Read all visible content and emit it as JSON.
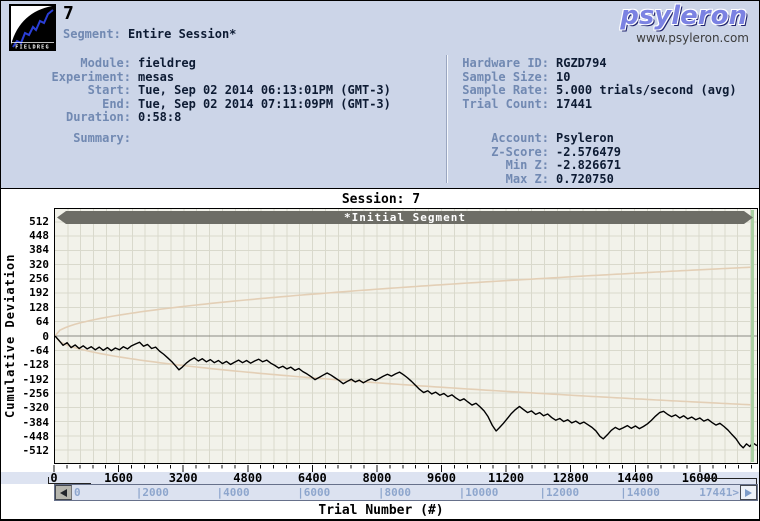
{
  "header": {
    "session_number": "7",
    "segment_label": "Segment:",
    "segment_value": "Entire Session*",
    "brand": "psyleron",
    "brand_url": "www.psyleron.com",
    "logo_text": "FIELDREG"
  },
  "info": {
    "left": [
      {
        "label": "Module:",
        "value": "fieldreg"
      },
      {
        "label": "Experiment:",
        "value": "mesas"
      },
      {
        "label": "Start:",
        "value": "Tue, Sep 02 2014 06:13:01PM (GMT-3)"
      },
      {
        "label": "End:",
        "value": "Tue, Sep 02 2014 07:11:09PM (GMT-3)"
      },
      {
        "label": "Duration:",
        "value": "0:58:8"
      },
      {
        "label": "Summary:",
        "value": ""
      }
    ],
    "right_top": [
      {
        "label": "Hardware ID:",
        "value": "RGZD794"
      },
      {
        "label": "Sample Size:",
        "value": "10"
      },
      {
        "label": "Sample Rate:",
        "value": "5.000 trials/second (avg)"
      },
      {
        "label": "Trial Count:",
        "value": "17441"
      }
    ],
    "right_bottom": [
      {
        "label": "Account:",
        "value": "Psyleron"
      },
      {
        "label": "Z-Score:",
        "value": "-2.576479"
      },
      {
        "label": "Min Z:",
        "value": "-2.826671"
      },
      {
        "label": "Max Z:",
        "value": "0.720750"
      }
    ]
  },
  "chart_data": {
    "type": "line",
    "title": "Session: 7",
    "segment_bar_label": "*Initial Segment",
    "xlabel": "Trial Number (#)",
    "ylabel": "Cumulative Deviation",
    "xlim": [
      0,
      17441
    ],
    "ylim": [
      -570,
      570
    ],
    "grid": true,
    "x_major_ticks": [
      0,
      1600,
      3200,
      4800,
      6400,
      8000,
      9600,
      11200,
      12800,
      14400,
      16000
    ],
    "x_minor_step": 320,
    "y_ticks": [
      512,
      448,
      384,
      320,
      256,
      192,
      128,
      64,
      0,
      -64,
      -128,
      -192,
      -256,
      -320,
      -384,
      -448,
      -512
    ],
    "envelope": {
      "shape": "sqrt",
      "end_value": 310,
      "note": "p=0.05 significance envelope, value = ±310·sqrt(t/17441)"
    },
    "series": [
      {
        "name": "Cumulative Deviation",
        "points": [
          [
            0,
            0
          ],
          [
            100,
            -20
          ],
          [
            200,
            -42
          ],
          [
            300,
            -30
          ],
          [
            400,
            -52
          ],
          [
            500,
            -40
          ],
          [
            600,
            -56
          ],
          [
            700,
            -44
          ],
          [
            800,
            -58
          ],
          [
            900,
            -48
          ],
          [
            1000,
            -62
          ],
          [
            1100,
            -50
          ],
          [
            1200,
            -64
          ],
          [
            1300,
            -52
          ],
          [
            1400,
            -66
          ],
          [
            1500,
            -54
          ],
          [
            1600,
            -62
          ],
          [
            1700,
            -48
          ],
          [
            1800,
            -58
          ],
          [
            1900,
            -44
          ],
          [
            2000,
            -36
          ],
          [
            2100,
            -28
          ],
          [
            2200,
            -46
          ],
          [
            2300,
            -38
          ],
          [
            2400,
            -56
          ],
          [
            2500,
            -50
          ],
          [
            2600,
            -68
          ],
          [
            2700,
            -82
          ],
          [
            2800,
            -98
          ],
          [
            2900,
            -115
          ],
          [
            3000,
            -135
          ],
          [
            3080,
            -152
          ],
          [
            3160,
            -140
          ],
          [
            3260,
            -122
          ],
          [
            3360,
            -108
          ],
          [
            3460,
            -98
          ],
          [
            3560,
            -112
          ],
          [
            3660,
            -102
          ],
          [
            3760,
            -116
          ],
          [
            3860,
            -106
          ],
          [
            3960,
            -120
          ],
          [
            4060,
            -110
          ],
          [
            4160,
            -124
          ],
          [
            4260,
            -114
          ],
          [
            4360,
            -128
          ],
          [
            4460,
            -118
          ],
          [
            4560,
            -108
          ],
          [
            4660,
            -120
          ],
          [
            4760,
            -110
          ],
          [
            4860,
            -122
          ],
          [
            4960,
            -112
          ],
          [
            5060,
            -104
          ],
          [
            5160,
            -116
          ],
          [
            5260,
            -108
          ],
          [
            5360,
            -122
          ],
          [
            5460,
            -132
          ],
          [
            5560,
            -144
          ],
          [
            5660,
            -136
          ],
          [
            5760,
            -148
          ],
          [
            5860,
            -140
          ],
          [
            5960,
            -154
          ],
          [
            6060,
            -146
          ],
          [
            6160,
            -160
          ],
          [
            6260,
            -170
          ],
          [
            6360,
            -182
          ],
          [
            6460,
            -196
          ],
          [
            6560,
            -186
          ],
          [
            6660,
            -176
          ],
          [
            6760,
            -166
          ],
          [
            6860,
            -176
          ],
          [
            6960,
            -188
          ],
          [
            7060,
            -200
          ],
          [
            7160,
            -214
          ],
          [
            7260,
            -204
          ],
          [
            7360,
            -194
          ],
          [
            7460,
            -206
          ],
          [
            7560,
            -198
          ],
          [
            7660,
            -210
          ],
          [
            7760,
            -200
          ],
          [
            7860,
            -192
          ],
          [
            7960,
            -200
          ],
          [
            8060,
            -190
          ],
          [
            8160,
            -180
          ],
          [
            8260,
            -172
          ],
          [
            8360,
            -180
          ],
          [
            8460,
            -170
          ],
          [
            8560,
            -162
          ],
          [
            8660,
            -174
          ],
          [
            8760,
            -188
          ],
          [
            8860,
            -204
          ],
          [
            8960,
            -222
          ],
          [
            9060,
            -240
          ],
          [
            9160,
            -254
          ],
          [
            9260,
            -246
          ],
          [
            9360,
            -260
          ],
          [
            9460,
            -252
          ],
          [
            9560,
            -266
          ],
          [
            9660,
            -258
          ],
          [
            9760,
            -272
          ],
          [
            9860,
            -264
          ],
          [
            9960,
            -278
          ],
          [
            10060,
            -290
          ],
          [
            10160,
            -282
          ],
          [
            10260,
            -296
          ],
          [
            10360,
            -310
          ],
          [
            10460,
            -302
          ],
          [
            10560,
            -318
          ],
          [
            10660,
            -336
          ],
          [
            10760,
            -362
          ],
          [
            10860,
            -400
          ],
          [
            10960,
            -426
          ],
          [
            11040,
            -412
          ],
          [
            11140,
            -392
          ],
          [
            11240,
            -370
          ],
          [
            11340,
            -348
          ],
          [
            11440,
            -330
          ],
          [
            11540,
            -316
          ],
          [
            11640,
            -330
          ],
          [
            11740,
            -344
          ],
          [
            11840,
            -336
          ],
          [
            11940,
            -352
          ],
          [
            12040,
            -344
          ],
          [
            12140,
            -358
          ],
          [
            12240,
            -350
          ],
          [
            12340,
            -366
          ],
          [
            12440,
            -378
          ],
          [
            12540,
            -370
          ],
          [
            12640,
            -384
          ],
          [
            12740,
            -376
          ],
          [
            12840,
            -390
          ],
          [
            12940,
            -382
          ],
          [
            13040,
            -394
          ],
          [
            13140,
            -386
          ],
          [
            13240,
            -398
          ],
          [
            13340,
            -410
          ],
          [
            13440,
            -426
          ],
          [
            13540,
            -450
          ],
          [
            13620,
            -462
          ],
          [
            13720,
            -444
          ],
          [
            13820,
            -424
          ],
          [
            13920,
            -410
          ],
          [
            14020,
            -420
          ],
          [
            14120,
            -412
          ],
          [
            14220,
            -402
          ],
          [
            14320,
            -414
          ],
          [
            14420,
            -404
          ],
          [
            14520,
            -416
          ],
          [
            14620,
            -406
          ],
          [
            14720,
            -394
          ],
          [
            14820,
            -378
          ],
          [
            14920,
            -360
          ],
          [
            15020,
            -344
          ],
          [
            15120,
            -338
          ],
          [
            15220,
            -352
          ],
          [
            15320,
            -362
          ],
          [
            15420,
            -354
          ],
          [
            15520,
            -368
          ],
          [
            15620,
            -358
          ],
          [
            15720,
            -372
          ],
          [
            15820,
            -364
          ],
          [
            15920,
            -376
          ],
          [
            16020,
            -368
          ],
          [
            16120,
            -382
          ],
          [
            16220,
            -374
          ],
          [
            16320,
            -388
          ],
          [
            16420,
            -400
          ],
          [
            16520,
            -392
          ],
          [
            16620,
            -406
          ],
          [
            16720,
            -422
          ],
          [
            16820,
            -442
          ],
          [
            16920,
            -462
          ],
          [
            17020,
            -488
          ],
          [
            17100,
            -502
          ],
          [
            17180,
            -484
          ],
          [
            17260,
            -496
          ],
          [
            17340,
            -480
          ],
          [
            17441,
            -492
          ]
        ]
      }
    ],
    "scrollbar_labels": [
      {
        "t": 0,
        "label": "0"
      },
      {
        "t": 2000,
        "label": "|2000"
      },
      {
        "t": 4000,
        "label": "|4000"
      },
      {
        "t": 6000,
        "label": "|6000"
      },
      {
        "t": 8000,
        "label": "|8000"
      },
      {
        "t": 10000,
        "label": "|10000"
      },
      {
        "t": 12000,
        "label": "|12000"
      },
      {
        "t": 14000,
        "label": "|14000"
      },
      {
        "t": 17441,
        "label": "17441>"
      }
    ]
  },
  "icons": {
    "scroll_left": "left-triangle",
    "scroll_right": "right-triangle"
  },
  "colors": {
    "window_bg": "#ccd5e8",
    "label_text": "#7189b2",
    "value_text": "#0d1b33",
    "plot_bg": "#f2f2ea",
    "grid": "#d9d9cc",
    "zero_line": "#8a8a84",
    "envelope": "#e3cfb6",
    "data_line": "#000000",
    "segment_bar": "#6d6d66",
    "band_bg": "#dde3f1",
    "scroll_label": "#8ea6cd",
    "segment_end_marker": "#a9cfa2"
  }
}
